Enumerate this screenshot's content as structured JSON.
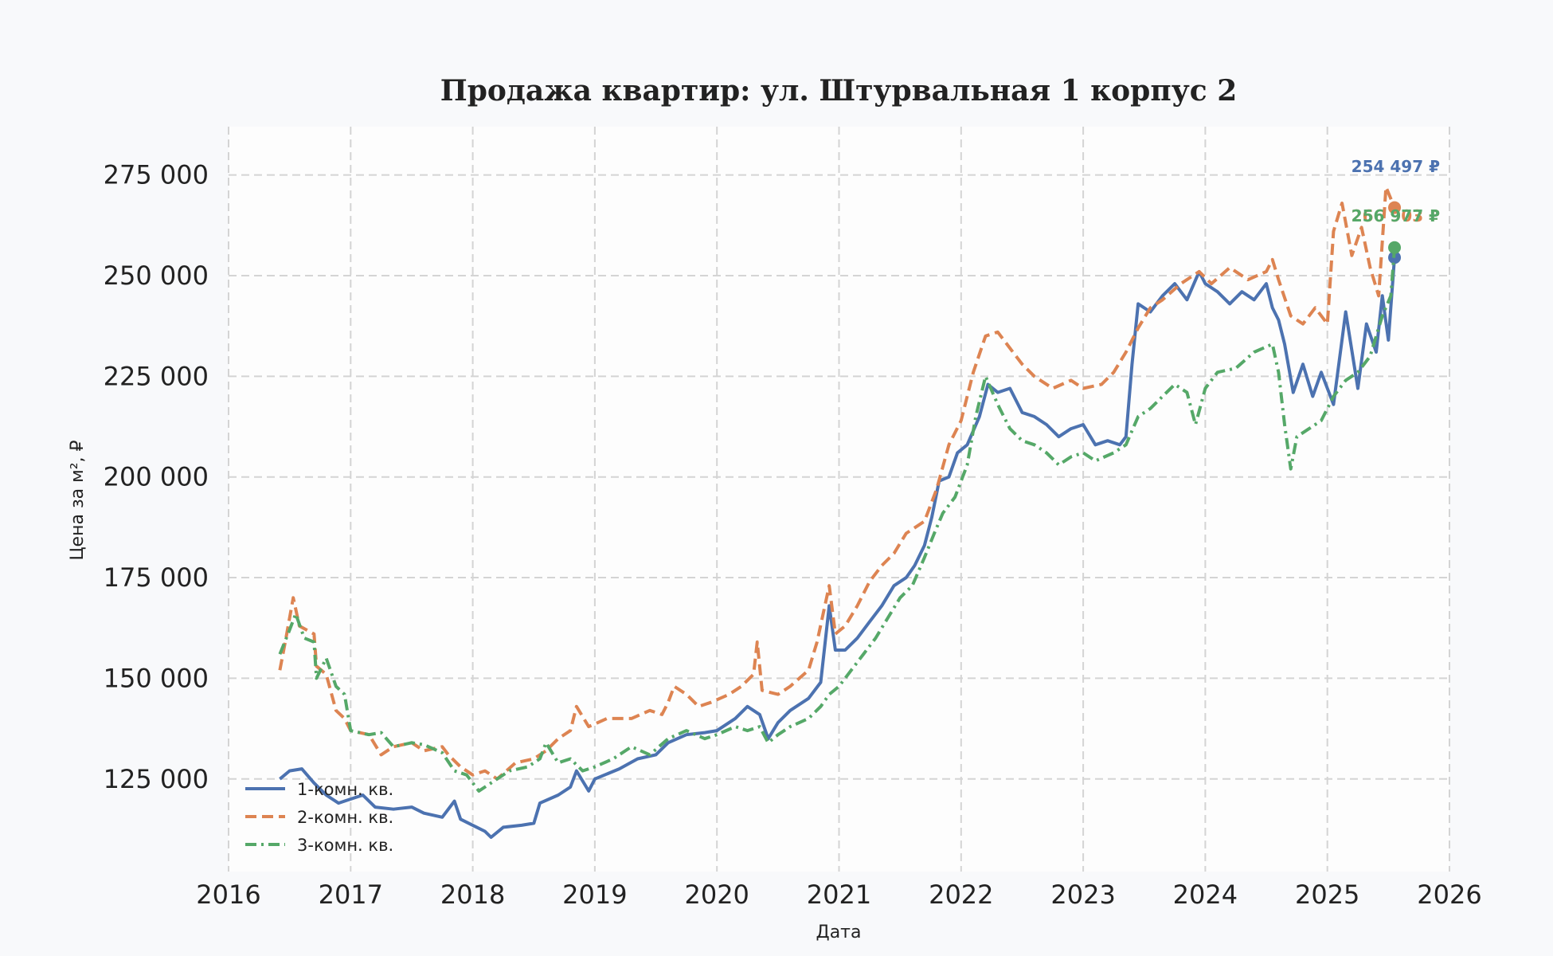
{
  "chart_data": {
    "type": "line",
    "title": "Продажа квартир: ул. Штурвальная 1 корпус 2",
    "xlabel": "Дата",
    "ylabel": "Цена за м², ₽",
    "x_ticks": [
      "2016",
      "2017",
      "2018",
      "2019",
      "2020",
      "2021",
      "2022",
      "2023",
      "2024",
      "2025",
      "2026"
    ],
    "y_ticks": [
      "125 000",
      "150 000",
      "175 000",
      "200 000",
      "225 000",
      "250 000",
      "275 000"
    ],
    "xlim": [
      2016.0,
      2026.0
    ],
    "ylim": [
      102000,
      287000
    ],
    "grid": true,
    "legend_position": "lower-left",
    "series": [
      {
        "name": "1-комн. кв.",
        "color": "#4c72b0",
        "dash": "solid",
        "end_label": "254 497 ₽",
        "points": [
          [
            2016.42,
            125000
          ],
          [
            2016.5,
            127000
          ],
          [
            2016.6,
            127500
          ],
          [
            2016.7,
            124000
          ],
          [
            2016.8,
            121000
          ],
          [
            2016.9,
            119000
          ],
          [
            2017.0,
            120000
          ],
          [
            2017.1,
            121000
          ],
          [
            2017.2,
            118000
          ],
          [
            2017.35,
            117500
          ],
          [
            2017.5,
            118000
          ],
          [
            2017.6,
            116500
          ],
          [
            2017.75,
            115500
          ],
          [
            2017.85,
            119500
          ],
          [
            2017.9,
            115000
          ],
          [
            2018.0,
            113500
          ],
          [
            2018.1,
            112000
          ],
          [
            2018.15,
            110500
          ],
          [
            2018.25,
            113000
          ],
          [
            2018.4,
            113500
          ],
          [
            2018.5,
            114000
          ],
          [
            2018.55,
            119000
          ],
          [
            2018.7,
            121000
          ],
          [
            2018.8,
            123000
          ],
          [
            2018.85,
            127000
          ],
          [
            2018.95,
            122000
          ],
          [
            2019.0,
            125000
          ],
          [
            2019.2,
            127500
          ],
          [
            2019.35,
            130000
          ],
          [
            2019.5,
            131000
          ],
          [
            2019.6,
            134000
          ],
          [
            2019.75,
            136000
          ],
          [
            2019.9,
            136500
          ],
          [
            2020.0,
            137000
          ],
          [
            2020.15,
            140000
          ],
          [
            2020.25,
            143000
          ],
          [
            2020.35,
            141000
          ],
          [
            2020.42,
            135000
          ],
          [
            2020.5,
            139000
          ],
          [
            2020.6,
            142000
          ],
          [
            2020.75,
            145000
          ],
          [
            2020.85,
            149000
          ],
          [
            2020.92,
            168000
          ],
          [
            2020.97,
            157000
          ],
          [
            2021.05,
            157000
          ],
          [
            2021.15,
            160000
          ],
          [
            2021.25,
            164000
          ],
          [
            2021.35,
            168000
          ],
          [
            2021.45,
            173000
          ],
          [
            2021.55,
            175000
          ],
          [
            2021.62,
            178000
          ],
          [
            2021.7,
            183000
          ],
          [
            2021.76,
            190000
          ],
          [
            2021.82,
            199000
          ],
          [
            2021.9,
            200000
          ],
          [
            2021.97,
            206000
          ],
          [
            2022.05,
            208000
          ],
          [
            2022.15,
            215000
          ],
          [
            2022.22,
            223000
          ],
          [
            2022.3,
            221000
          ],
          [
            2022.4,
            222000
          ],
          [
            2022.5,
            216000
          ],
          [
            2022.6,
            215000
          ],
          [
            2022.7,
            213000
          ],
          [
            2022.8,
            210000
          ],
          [
            2022.9,
            212000
          ],
          [
            2023.0,
            213000
          ],
          [
            2023.1,
            208000
          ],
          [
            2023.2,
            209000
          ],
          [
            2023.3,
            208000
          ],
          [
            2023.35,
            210000
          ],
          [
            2023.4,
            228000
          ],
          [
            2023.45,
            243000
          ],
          [
            2023.55,
            241000
          ],
          [
            2023.65,
            245000
          ],
          [
            2023.75,
            248000
          ],
          [
            2023.85,
            244000
          ],
          [
            2023.95,
            251000
          ],
          [
            2024.0,
            248000
          ],
          [
            2024.1,
            246000
          ],
          [
            2024.2,
            243000
          ],
          [
            2024.3,
            246000
          ],
          [
            2024.4,
            244000
          ],
          [
            2024.5,
            248000
          ],
          [
            2024.55,
            242000
          ],
          [
            2024.6,
            239000
          ],
          [
            2024.65,
            233000
          ],
          [
            2024.72,
            221000
          ],
          [
            2024.8,
            228000
          ],
          [
            2024.88,
            220000
          ],
          [
            2024.95,
            226000
          ],
          [
            2025.05,
            218000
          ],
          [
            2025.15,
            241000
          ],
          [
            2025.25,
            222000
          ],
          [
            2025.32,
            238000
          ],
          [
            2025.4,
            231000
          ],
          [
            2025.45,
            245000
          ],
          [
            2025.5,
            234000
          ],
          [
            2025.55,
            254497
          ]
        ]
      },
      {
        "name": "2-комн. кв.",
        "color": "#dd8452",
        "dash": "dashed",
        "end_label": "266 903 ₽",
        "points": [
          [
            2016.42,
            152000
          ],
          [
            2016.47,
            160000
          ],
          [
            2016.53,
            170000
          ],
          [
            2016.58,
            163000
          ],
          [
            2016.7,
            161000
          ],
          [
            2016.72,
            153000
          ],
          [
            2016.8,
            151000
          ],
          [
            2016.88,
            142000
          ],
          [
            2016.95,
            140000
          ],
          [
            2017.0,
            137000
          ],
          [
            2017.15,
            136000
          ],
          [
            2017.25,
            131000
          ],
          [
            2017.35,
            133000
          ],
          [
            2017.5,
            134000
          ],
          [
            2017.6,
            132000
          ],
          [
            2017.75,
            133000
          ],
          [
            2017.8,
            131000
          ],
          [
            2017.9,
            128000
          ],
          [
            2018.0,
            126000
          ],
          [
            2018.1,
            127000
          ],
          [
            2018.2,
            125000
          ],
          [
            2018.35,
            129000
          ],
          [
            2018.5,
            130000
          ],
          [
            2018.6,
            132000
          ],
          [
            2018.7,
            135000
          ],
          [
            2018.8,
            137000
          ],
          [
            2018.85,
            143000
          ],
          [
            2018.95,
            138000
          ],
          [
            2019.1,
            140000
          ],
          [
            2019.3,
            140000
          ],
          [
            2019.45,
            142000
          ],
          [
            2019.55,
            141000
          ],
          [
            2019.6,
            144000
          ],
          [
            2019.65,
            148000
          ],
          [
            2019.75,
            146000
          ],
          [
            2019.85,
            143000
          ],
          [
            2019.95,
            144000
          ],
          [
            2020.1,
            146000
          ],
          [
            2020.2,
            148000
          ],
          [
            2020.3,
            151000
          ],
          [
            2020.33,
            159000
          ],
          [
            2020.37,
            147000
          ],
          [
            2020.5,
            146000
          ],
          [
            2020.6,
            148000
          ],
          [
            2020.75,
            152000
          ],
          [
            2020.82,
            159000
          ],
          [
            2020.92,
            173000
          ],
          [
            2020.97,
            161000
          ],
          [
            2021.05,
            163000
          ],
          [
            2021.15,
            168000
          ],
          [
            2021.25,
            174000
          ],
          [
            2021.35,
            178000
          ],
          [
            2021.45,
            181000
          ],
          [
            2021.55,
            186000
          ],
          [
            2021.7,
            189000
          ],
          [
            2021.8,
            197000
          ],
          [
            2021.9,
            208000
          ],
          [
            2022.0,
            214000
          ],
          [
            2022.1,
            226000
          ],
          [
            2022.2,
            235000
          ],
          [
            2022.3,
            236000
          ],
          [
            2022.4,
            232000
          ],
          [
            2022.5,
            228000
          ],
          [
            2022.6,
            225000
          ],
          [
            2022.75,
            222000
          ],
          [
            2022.9,
            224000
          ],
          [
            2023.0,
            222000
          ],
          [
            2023.15,
            223000
          ],
          [
            2023.25,
            226000
          ],
          [
            2023.35,
            231000
          ],
          [
            2023.45,
            237000
          ],
          [
            2023.55,
            242000
          ],
          [
            2023.65,
            244000
          ],
          [
            2023.8,
            248000
          ],
          [
            2023.95,
            251000
          ],
          [
            2024.05,
            248000
          ],
          [
            2024.2,
            252000
          ],
          [
            2024.35,
            249000
          ],
          [
            2024.5,
            251000
          ],
          [
            2024.55,
            254000
          ],
          [
            2024.6,
            249000
          ],
          [
            2024.7,
            240000
          ],
          [
            2024.8,
            238000
          ],
          [
            2024.9,
            242000
          ],
          [
            2025.0,
            238000
          ],
          [
            2025.05,
            261000
          ],
          [
            2025.12,
            268000
          ],
          [
            2025.2,
            255000
          ],
          [
            2025.28,
            262000
          ],
          [
            2025.35,
            252000
          ],
          [
            2025.42,
            245000
          ],
          [
            2025.48,
            272000
          ],
          [
            2025.55,
            266903
          ]
        ]
      },
      {
        "name": "3-комн. кв.",
        "color": "#55a868",
        "dash": "dashdot",
        "end_label": "256 977 ₽",
        "points": [
          [
            2016.42,
            156000
          ],
          [
            2016.5,
            162000
          ],
          [
            2016.55,
            166000
          ],
          [
            2016.62,
            160000
          ],
          [
            2016.7,
            159000
          ],
          [
            2016.72,
            150000
          ],
          [
            2016.8,
            155000
          ],
          [
            2016.88,
            148000
          ],
          [
            2016.95,
            146000
          ],
          [
            2017.0,
            137000
          ],
          [
            2017.15,
            136000
          ],
          [
            2017.25,
            136500
          ],
          [
            2017.35,
            133000
          ],
          [
            2017.5,
            134000
          ],
          [
            2017.6,
            133500
          ],
          [
            2017.75,
            131500
          ],
          [
            2017.85,
            127000
          ],
          [
            2017.95,
            126000
          ],
          [
            2018.0,
            124000
          ],
          [
            2018.05,
            122000
          ],
          [
            2018.15,
            124000
          ],
          [
            2018.3,
            127000
          ],
          [
            2018.45,
            128000
          ],
          [
            2018.55,
            130000
          ],
          [
            2018.6,
            134000
          ],
          [
            2018.7,
            129000
          ],
          [
            2018.8,
            130000
          ],
          [
            2018.9,
            127000
          ],
          [
            2019.0,
            128000
          ],
          [
            2019.15,
            130000
          ],
          [
            2019.3,
            133000
          ],
          [
            2019.45,
            131000
          ],
          [
            2019.6,
            135000
          ],
          [
            2019.75,
            137000
          ],
          [
            2019.9,
            135000
          ],
          [
            2020.0,
            136000
          ],
          [
            2020.15,
            138000
          ],
          [
            2020.25,
            137000
          ],
          [
            2020.35,
            138000
          ],
          [
            2020.42,
            134000
          ],
          [
            2020.5,
            136000
          ],
          [
            2020.6,
            138000
          ],
          [
            2020.75,
            140000
          ],
          [
            2020.85,
            143000
          ],
          [
            2020.92,
            146000
          ],
          [
            2021.0,
            148000
          ],
          [
            2021.1,
            152000
          ],
          [
            2021.2,
            156000
          ],
          [
            2021.3,
            160000
          ],
          [
            2021.4,
            165000
          ],
          [
            2021.5,
            170000
          ],
          [
            2021.6,
            173000
          ],
          [
            2021.7,
            180000
          ],
          [
            2021.78,
            186000
          ],
          [
            2021.85,
            191000
          ],
          [
            2021.95,
            195000
          ],
          [
            2022.05,
            203000
          ],
          [
            2022.12,
            215000
          ],
          [
            2022.2,
            225000
          ],
          [
            2022.3,
            218000
          ],
          [
            2022.4,
            212000
          ],
          [
            2022.5,
            209000
          ],
          [
            2022.6,
            208000
          ],
          [
            2022.7,
            206000
          ],
          [
            2022.8,
            203000
          ],
          [
            2022.9,
            205000
          ],
          [
            2023.0,
            206000
          ],
          [
            2023.1,
            204000
          ],
          [
            2023.25,
            206000
          ],
          [
            2023.35,
            208000
          ],
          [
            2023.45,
            215000
          ],
          [
            2023.55,
            217000
          ],
          [
            2023.65,
            220000
          ],
          [
            2023.75,
            223000
          ],
          [
            2023.85,
            221000
          ],
          [
            2023.92,
            213000
          ],
          [
            2024.0,
            222000
          ],
          [
            2024.1,
            226000
          ],
          [
            2024.25,
            227000
          ],
          [
            2024.4,
            231000
          ],
          [
            2024.55,
            233000
          ],
          [
            2024.6,
            226000
          ],
          [
            2024.65,
            213000
          ],
          [
            2024.7,
            202000
          ],
          [
            2024.75,
            210000
          ],
          [
            2024.85,
            212000
          ],
          [
            2024.95,
            214000
          ],
          [
            2025.05,
            220000
          ],
          [
            2025.15,
            224000
          ],
          [
            2025.25,
            226000
          ],
          [
            2025.35,
            230000
          ],
          [
            2025.45,
            240000
          ],
          [
            2025.52,
            245000
          ],
          [
            2025.55,
            256977
          ]
        ]
      }
    ]
  }
}
